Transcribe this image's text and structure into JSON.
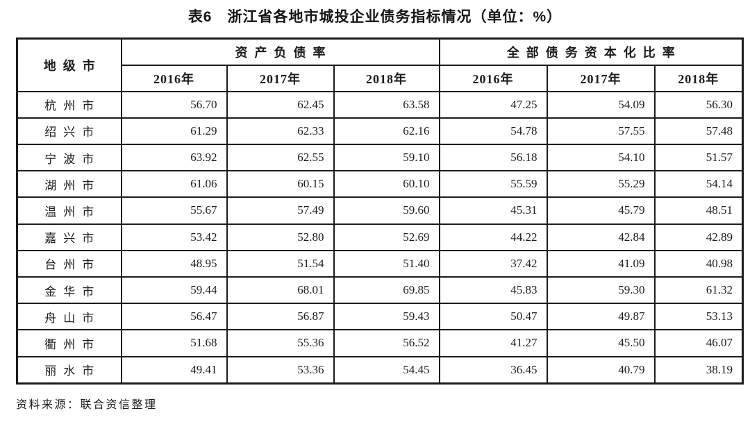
{
  "title": "表6　浙江省各地市城投企业债务指标情况（单位：%）",
  "table": {
    "corner_header": "地级市",
    "groups": [
      {
        "label": "资产负债率"
      },
      {
        "label": "全部债务资本化比率"
      }
    ],
    "year_headers": [
      "2016年",
      "2017年",
      "2018年",
      "2016年",
      "2017年",
      "2018年"
    ],
    "rows": [
      {
        "city": "杭州市",
        "values": [
          "56.70",
          "62.45",
          "63.58",
          "47.25",
          "54.09",
          "56.30"
        ]
      },
      {
        "city": "绍兴市",
        "values": [
          "61.29",
          "62.33",
          "62.16",
          "54.78",
          "57.55",
          "57.48"
        ]
      },
      {
        "city": "宁波市",
        "values": [
          "63.92",
          "62.55",
          "59.10",
          "56.18",
          "54.10",
          "51.57"
        ]
      },
      {
        "city": "湖州市",
        "values": [
          "61.06",
          "60.15",
          "60.10",
          "55.59",
          "55.29",
          "54.14"
        ]
      },
      {
        "city": "温州市",
        "values": [
          "55.67",
          "57.49",
          "59.60",
          "45.31",
          "45.79",
          "48.51"
        ]
      },
      {
        "city": "嘉兴市",
        "values": [
          "53.42",
          "52.80",
          "52.69",
          "44.22",
          "42.84",
          "42.89"
        ]
      },
      {
        "city": "台州市",
        "values": [
          "48.95",
          "51.54",
          "51.40",
          "37.42",
          "41.09",
          "40.98"
        ]
      },
      {
        "city": "金华市",
        "values": [
          "59.44",
          "68.01",
          "69.85",
          "45.83",
          "59.30",
          "61.32"
        ]
      },
      {
        "city": "舟山市",
        "values": [
          "56.47",
          "56.87",
          "59.43",
          "50.47",
          "49.87",
          "53.13"
        ]
      },
      {
        "city": "衢州市",
        "values": [
          "51.68",
          "55.36",
          "56.52",
          "41.27",
          "45.50",
          "46.07"
        ]
      },
      {
        "city": "丽水市",
        "values": [
          "49.41",
          "53.36",
          "54.45",
          "36.45",
          "40.79",
          "38.19"
        ]
      }
    ]
  },
  "source": "资料来源：联合资信整理",
  "colors": {
    "text": "#1b1b1b",
    "border": "#1b1b1b",
    "background": "#ffffff"
  }
}
